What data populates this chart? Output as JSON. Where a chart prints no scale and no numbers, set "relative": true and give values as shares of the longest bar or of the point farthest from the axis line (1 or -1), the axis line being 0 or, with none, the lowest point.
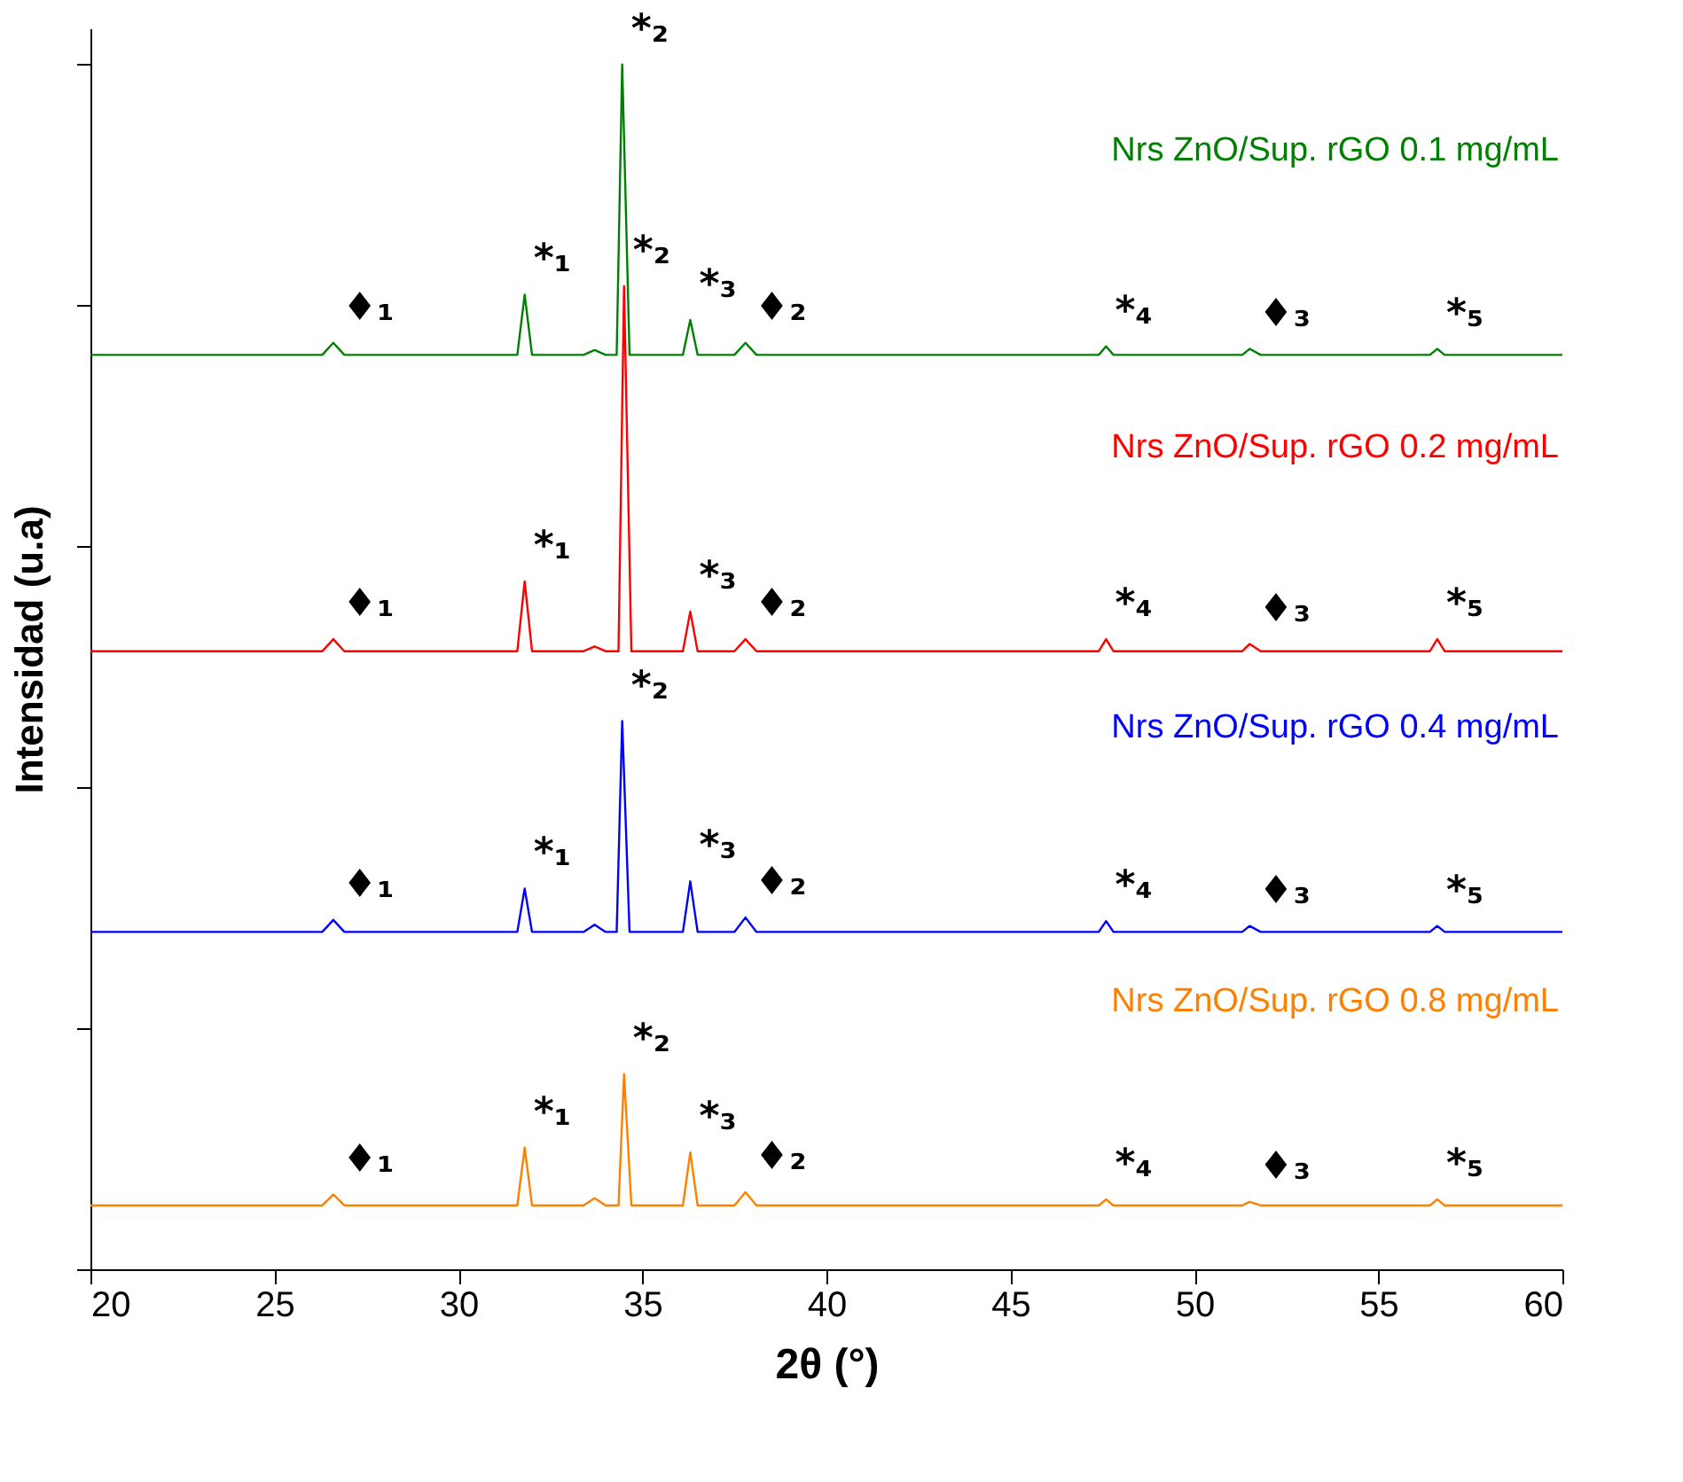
{
  "chart_data": {
    "type": "line",
    "xlabel": "2θ (°)",
    "ylabel": "Intensidad (u.a)",
    "relative": true,
    "xlim": [
      20,
      60
    ],
    "xticks": [
      20,
      25,
      30,
      35,
      40,
      45,
      50,
      55,
      60
    ],
    "tick_labels": "x",
    "grid": false,
    "legend": false,
    "marker": "none",
    "line_style": "solid",
    "series": [
      {
        "name": "Nrs ZnO/Sup. rGO 0.1 mg/mL",
        "color": "#008000",
        "x": [
          20,
          26.3,
          26.6,
          26.9,
          31.6,
          31.8,
          32.0,
          33.4,
          33.7,
          34.0,
          34.3,
          34.45,
          34.65,
          36.1,
          36.3,
          36.5,
          37.5,
          37.8,
          38.1,
          47.4,
          47.6,
          47.8,
          51.3,
          51.5,
          51.8,
          56.4,
          56.6,
          56.8,
          60
        ],
        "values": [
          0.759,
          0.759,
          0.769,
          0.759,
          0.759,
          0.809,
          0.759,
          0.759,
          0.763,
          0.759,
          0.759,
          1.0,
          0.759,
          0.759,
          0.788,
          0.759,
          0.759,
          0.769,
          0.759,
          0.759,
          0.766,
          0.759,
          0.759,
          0.764,
          0.759,
          0.759,
          0.764,
          0.759,
          0.759
        ]
      },
      {
        "name": "Nrs ZnO/Sup. rGO 0.2 mg/mL",
        "color": "#ff0000",
        "x": [
          20,
          26.3,
          26.6,
          26.9,
          31.6,
          31.8,
          32.0,
          33.4,
          33.7,
          34.0,
          34.35,
          34.5,
          34.7,
          36.1,
          36.3,
          36.5,
          37.5,
          37.8,
          38.1,
          47.4,
          47.6,
          47.8,
          51.3,
          51.5,
          51.8,
          56.4,
          56.6,
          56.8,
          60
        ],
        "values": [
          0.513,
          0.513,
          0.523,
          0.513,
          0.513,
          0.571,
          0.513,
          0.513,
          0.517,
          0.513,
          0.513,
          0.816,
          0.513,
          0.513,
          0.546,
          0.513,
          0.513,
          0.523,
          0.513,
          0.513,
          0.523,
          0.513,
          0.513,
          0.519,
          0.513,
          0.513,
          0.523,
          0.513,
          0.513
        ]
      },
      {
        "name": "Nrs ZnO/Sup. rGO 0.4 mg/mL",
        "color": "#0000ff",
        "x": [
          20,
          26.3,
          26.6,
          26.9,
          31.6,
          31.8,
          32.0,
          33.4,
          33.7,
          34.0,
          34.3,
          34.45,
          34.65,
          36.1,
          36.3,
          36.5,
          37.5,
          37.8,
          38.1,
          47.4,
          47.6,
          47.8,
          51.3,
          51.5,
          51.8,
          56.4,
          56.6,
          56.8,
          60
        ],
        "values": [
          0.28,
          0.28,
          0.29,
          0.28,
          0.28,
          0.316,
          0.28,
          0.28,
          0.286,
          0.28,
          0.28,
          0.455,
          0.28,
          0.28,
          0.322,
          0.28,
          0.28,
          0.292,
          0.28,
          0.28,
          0.289,
          0.28,
          0.28,
          0.285,
          0.28,
          0.28,
          0.285,
          0.28,
          0.28
        ]
      },
      {
        "name": "Nrs ZnO/Sup. rGO 0.8 mg/mL",
        "color": "#ff8000",
        "x": [
          20,
          26.3,
          26.6,
          26.9,
          31.6,
          31.8,
          32.0,
          33.4,
          33.7,
          34.0,
          34.35,
          34.5,
          34.7,
          36.1,
          36.3,
          36.5,
          37.5,
          37.8,
          38.1,
          47.4,
          47.6,
          47.8,
          51.3,
          51.5,
          51.8,
          56.4,
          56.6,
          56.8,
          60
        ],
        "values": [
          0.053,
          0.053,
          0.062,
          0.053,
          0.053,
          0.101,
          0.053,
          0.053,
          0.059,
          0.053,
          0.053,
          0.162,
          0.053,
          0.053,
          0.097,
          0.053,
          0.053,
          0.064,
          0.053,
          0.053,
          0.058,
          0.053,
          0.053,
          0.056,
          0.053,
          0.053,
          0.058,
          0.053,
          0.053
        ]
      }
    ],
    "annotations": [
      {
        "text": "♦₁",
        "x": 26.6,
        "y": 0.769
      },
      {
        "text": "*₁",
        "x": 31.8,
        "y": 0.809
      },
      {
        "text": "*₂",
        "x": 34.45,
        "y": 1.0
      },
      {
        "text": "*₃",
        "x": 36.3,
        "y": 0.788
      },
      {
        "text": "♦₂",
        "x": 37.8,
        "y": 0.769
      },
      {
        "text": "*₄",
        "x": 47.6,
        "y": 0.766
      },
      {
        "text": "♦₃",
        "x": 51.5,
        "y": 0.764
      },
      {
        "text": "*₅",
        "x": 56.6,
        "y": 0.764
      },
      {
        "text": "♦₁",
        "x": 26.6,
        "y": 0.523
      },
      {
        "text": "*₁",
        "x": 31.8,
        "y": 0.571
      },
      {
        "text": "*₂",
        "x": 34.5,
        "y": 0.816
      },
      {
        "text": "*₃",
        "x": 36.3,
        "y": 0.546
      },
      {
        "text": "♦₂",
        "x": 37.8,
        "y": 0.523
      },
      {
        "text": "*₄",
        "x": 47.6,
        "y": 0.523
      },
      {
        "text": "♦₃",
        "x": 51.5,
        "y": 0.519
      },
      {
        "text": "*₅",
        "x": 56.6,
        "y": 0.523
      },
      {
        "text": "♦₁",
        "x": 26.6,
        "y": 0.29
      },
      {
        "text": "*₁",
        "x": 31.8,
        "y": 0.316
      },
      {
        "text": "*₂",
        "x": 34.45,
        "y": 0.455
      },
      {
        "text": "*₃",
        "x": 36.3,
        "y": 0.322
      },
      {
        "text": "♦₂",
        "x": 37.8,
        "y": 0.292
      },
      {
        "text": "*₄",
        "x": 47.6,
        "y": 0.289
      },
      {
        "text": "♦₃",
        "x": 51.5,
        "y": 0.285
      },
      {
        "text": "*₅",
        "x": 56.6,
        "y": 0.285
      },
      {
        "text": "♦₁",
        "x": 26.6,
        "y": 0.062
      },
      {
        "text": "*₁",
        "x": 31.8,
        "y": 0.101
      },
      {
        "text": "*₂",
        "x": 34.5,
        "y": 0.162
      },
      {
        "text": "*₃",
        "x": 36.3,
        "y": 0.097
      },
      {
        "text": "♦₂",
        "x": 37.8,
        "y": 0.064
      },
      {
        "text": "*₄",
        "x": 47.6,
        "y": 0.058
      },
      {
        "text": "♦₃",
        "x": 51.5,
        "y": 0.056
      },
      {
        "text": "*₅",
        "x": 56.6,
        "y": 0.058
      }
    ]
  }
}
